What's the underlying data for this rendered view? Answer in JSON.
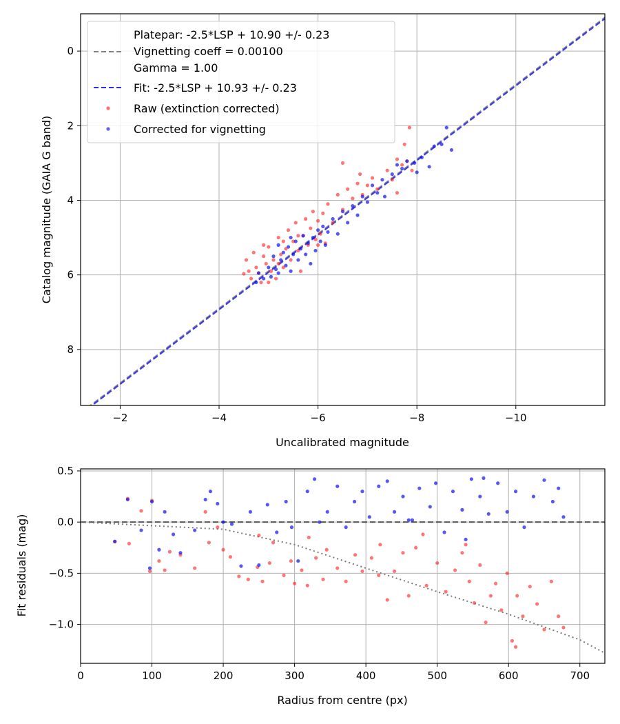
{
  "chart_data": [
    {
      "type": "scatter",
      "name": "calibration-plot",
      "xlabel": "Uncalibrated magnitude",
      "ylabel": "Catalog magnitude (GAIA G band)",
      "xlim": [
        -1.2,
        -11.8
      ],
      "ylim": [
        -1.0,
        9.5
      ],
      "x_inverted": true,
      "y_inverted": true,
      "grid": true,
      "legend_position": "upper-left",
      "x_ticks": [
        -2,
        -4,
        -6,
        -8,
        -10
      ],
      "x_tick_labels": [
        "−2",
        "−4",
        "−6",
        "−8",
        "−10"
      ],
      "y_ticks": [
        0,
        2,
        4,
        6,
        8
      ],
      "y_tick_labels": [
        "0",
        "2",
        "4",
        "6",
        "8"
      ],
      "legend": {
        "platepar_label_lines": [
          "Platepar: -2.5*LSP + 10.90 +/- 0.23",
          "Vignetting coeff = 0.00100",
          "Gamma = 1.00"
        ],
        "fit_label": "Fit: -2.5*LSP + 10.93 +/- 0.23",
        "raw_label": "Raw (extinction corrected)",
        "corrected_label": "Corrected for vignetting"
      },
      "lines": [
        {
          "label": "platepar",
          "slope": 1,
          "intercept": 10.9,
          "color": "#808080",
          "style": "dashed"
        },
        {
          "label": "fit",
          "slope": 1,
          "intercept": 10.93,
          "color": "#2b2be8",
          "style": "dashed"
        }
      ],
      "series": [
        {
          "name": "Raw (extinction corrected)",
          "color": "#ff2020",
          "points": [
            [
              -4.5,
              5.97
            ],
            [
              -4.55,
              5.6
            ],
            [
              -4.6,
              5.9
            ],
            [
              -4.65,
              6.1
            ],
            [
              -4.7,
              5.4
            ],
            [
              -4.75,
              5.8
            ],
            [
              -4.8,
              5.95
            ],
            [
              -4.85,
              6.2
            ],
            [
              -4.9,
              5.5
            ],
            [
              -4.95,
              5.7
            ],
            [
              -5.0,
              5.25
            ],
            [
              -5.05,
              5.9
            ],
            [
              -5.1,
              5.6
            ],
            [
              -5.15,
              6.1
            ],
            [
              -5.2,
              5.0
            ],
            [
              -5.25,
              5.45
            ],
            [
              -5.3,
              5.8
            ],
            [
              -5.35,
              5.3
            ],
            [
              -5.4,
              4.8
            ],
            [
              -5.45,
              5.6
            ],
            [
              -5.5,
              5.1
            ],
            [
              -5.55,
              4.6
            ],
            [
              -5.6,
              5.35
            ],
            [
              -5.65,
              5.9
            ],
            [
              -5.7,
              4.95
            ],
            [
              -5.75,
              4.5
            ],
            [
              -5.8,
              5.2
            ],
            [
              -5.85,
              4.75
            ],
            [
              -5.9,
              4.3
            ],
            [
              -5.95,
              5.05
            ],
            [
              -6.0,
              4.55
            ],
            [
              -6.05,
              4.9
            ],
            [
              -6.1,
              4.35
            ],
            [
              -6.15,
              5.15
            ],
            [
              -6.2,
              4.1
            ],
            [
              -6.3,
              4.6
            ],
            [
              -6.4,
              3.85
            ],
            [
              -6.5,
              4.25
            ],
            [
              -6.6,
              3.7
            ],
            [
              -6.7,
              3.95
            ],
            [
              -6.8,
              3.55
            ],
            [
              -6.85,
              3.3
            ],
            [
              -6.9,
              3.85
            ],
            [
              -7.0,
              3.6
            ],
            [
              -7.1,
              3.4
            ],
            [
              -7.2,
              3.7
            ],
            [
              -7.4,
              3.2
            ],
            [
              -7.5,
              3.45
            ],
            [
              -7.6,
              2.9
            ],
            [
              -7.7,
              3.05
            ],
            [
              -7.75,
              2.5
            ],
            [
              -7.8,
              2.95
            ],
            [
              -7.85,
              2.05
            ],
            [
              -7.9,
              3.2
            ],
            [
              -7.6,
              3.8
            ],
            [
              -6.5,
              3.0
            ],
            [
              -5.2,
              5.7
            ],
            [
              -4.9,
              5.2
            ],
            [
              -5.0,
              6.2
            ],
            [
              -5.6,
              4.95
            ],
            [
              -5.3,
              5.1
            ],
            [
              -6.0,
              5.2
            ]
          ]
        },
        {
          "name": "Corrected for vignetting",
          "color": "#1010f0",
          "points": [
            [
              -4.75,
              6.2
            ],
            [
              -4.8,
              5.95
            ],
            [
              -4.9,
              6.1
            ],
            [
              -5.0,
              5.8
            ],
            [
              -5.05,
              6.05
            ],
            [
              -5.1,
              5.5
            ],
            [
              -5.15,
              5.85
            ],
            [
              -5.2,
              5.95
            ],
            [
              -5.25,
              5.6
            ],
            [
              -5.3,
              5.4
            ],
            [
              -5.35,
              5.75
            ],
            [
              -5.4,
              5.25
            ],
            [
              -5.45,
              5.9
            ],
            [
              -5.5,
              5.45
            ],
            [
              -5.55,
              5.1
            ],
            [
              -5.6,
              5.6
            ],
            [
              -5.65,
              5.3
            ],
            [
              -5.7,
              4.95
            ],
            [
              -5.75,
              5.45
            ],
            [
              -5.8,
              5.15
            ],
            [
              -5.85,
              5.7
            ],
            [
              -5.9,
              5.0
            ],
            [
              -5.95,
              5.35
            ],
            [
              -6.0,
              4.8
            ],
            [
              -6.05,
              5.1
            ],
            [
              -6.1,
              4.7
            ],
            [
              -6.15,
              5.2
            ],
            [
              -6.2,
              4.85
            ],
            [
              -6.3,
              4.5
            ],
            [
              -6.4,
              4.9
            ],
            [
              -6.5,
              4.3
            ],
            [
              -6.6,
              4.6
            ],
            [
              -6.7,
              4.15
            ],
            [
              -6.8,
              4.4
            ],
            [
              -6.9,
              3.9
            ],
            [
              -7.0,
              4.05
            ],
            [
              -7.1,
              3.6
            ],
            [
              -7.2,
              3.8
            ],
            [
              -7.3,
              3.45
            ],
            [
              -7.5,
              3.3
            ],
            [
              -7.6,
              3.05
            ],
            [
              -7.7,
              3.15
            ],
            [
              -7.8,
              2.95
            ],
            [
              -7.95,
              3.0
            ],
            [
              -8.1,
              2.85
            ],
            [
              -8.25,
              3.1
            ],
            [
              -8.35,
              2.55
            ],
            [
              -8.5,
              2.5
            ],
            [
              -8.6,
              2.05
            ],
            [
              -8.7,
              2.65
            ],
            [
              -8.0,
              3.25
            ],
            [
              -7.35,
              3.9
            ],
            [
              -5.2,
              5.2
            ],
            [
              -5.45,
              5.0
            ]
          ]
        }
      ]
    },
    {
      "type": "scatter",
      "name": "residuals-plot",
      "xlabel": "Radius from centre (px)",
      "ylabel": "Fit residuals (mag)",
      "xlim": [
        0,
        735
      ],
      "ylim": [
        -1.38,
        0.52
      ],
      "grid": true,
      "x_ticks": [
        0,
        100,
        200,
        300,
        400,
        500,
        600,
        700
      ],
      "x_tick_labels": [
        "0",
        "100",
        "200",
        "300",
        "400",
        "500",
        "600",
        "700"
      ],
      "y_ticks": [
        0.5,
        0.0,
        -0.5,
        -1.0
      ],
      "y_tick_labels": [
        "0.5",
        "0.0",
        "−0.5",
        "−1.0"
      ],
      "zero_line": {
        "y": 0,
        "color": "#555555",
        "style": "dashed"
      },
      "vignetting_curve": {
        "color": "#777777",
        "style": "dotted",
        "points": [
          [
            0,
            0.0
          ],
          [
            200,
            -0.07
          ],
          [
            300,
            -0.22
          ],
          [
            400,
            -0.45
          ],
          [
            500,
            -0.68
          ],
          [
            600,
            -0.9
          ],
          [
            700,
            -1.15
          ],
          [
            735,
            -1.28
          ]
        ]
      },
      "series": [
        {
          "name": "Raw (extinction corrected)",
          "color": "#ff2020",
          "points": [
            [
              48,
              -0.19
            ],
            [
              66,
              0.23
            ],
            [
              68,
              -0.21
            ],
            [
              85,
              0.11
            ],
            [
              97,
              -0.48
            ],
            [
              100,
              0.21
            ],
            [
              110,
              -0.38
            ],
            [
              118,
              -0.47
            ],
            [
              125,
              -0.29
            ],
            [
              140,
              -0.32
            ],
            [
              160,
              -0.45
            ],
            [
              175,
              0.1
            ],
            [
              180,
              -0.2
            ],
            [
              192,
              -0.05
            ],
            [
              200,
              -0.27
            ],
            [
              210,
              -0.34
            ],
            [
              222,
              -0.53
            ],
            [
              235,
              -0.56
            ],
            [
              248,
              -0.44
            ],
            [
              255,
              -0.58
            ],
            [
              265,
              -0.4
            ],
            [
              270,
              -0.2
            ],
            [
              285,
              -0.52
            ],
            [
              295,
              -0.38
            ],
            [
              300,
              -0.6
            ],
            [
              310,
              -0.47
            ],
            [
              318,
              -0.62
            ],
            [
              330,
              -0.35
            ],
            [
              340,
              -0.56
            ],
            [
              345,
              -0.27
            ],
            [
              360,
              -0.45
            ],
            [
              372,
              -0.58
            ],
            [
              385,
              -0.32
            ],
            [
              395,
              -0.48
            ],
            [
              408,
              -0.35
            ],
            [
              418,
              -0.52
            ],
            [
              430,
              -0.76
            ],
            [
              440,
              -0.48
            ],
            [
              452,
              -0.3
            ],
            [
              460,
              -0.72
            ],
            [
              470,
              -0.25
            ],
            [
              485,
              -0.62
            ],
            [
              500,
              -0.4
            ],
            [
              512,
              -0.68
            ],
            [
              525,
              -0.47
            ],
            [
              535,
              -0.3
            ],
            [
              545,
              -0.58
            ],
            [
              552,
              -0.79
            ],
            [
              560,
              -0.42
            ],
            [
              568,
              -0.98
            ],
            [
              575,
              -0.72
            ],
            [
              582,
              -0.6
            ],
            [
              590,
              -0.86
            ],
            [
              598,
              -0.5
            ],
            [
              605,
              -1.16
            ],
            [
              612,
              -0.72
            ],
            [
              620,
              -0.92
            ],
            [
              630,
              -0.63
            ],
            [
              640,
              -0.8
            ],
            [
              650,
              -1.05
            ],
            [
              660,
              -0.58
            ],
            [
              670,
              -0.92
            ],
            [
              677,
              -1.03
            ],
            [
              250,
              -0.13
            ],
            [
              320,
              -0.15
            ],
            [
              420,
              -0.22
            ],
            [
              480,
              -0.12
            ],
            [
              540,
              -0.22
            ],
            [
              610,
              -1.22
            ]
          ]
        },
        {
          "name": "Corrected for vignetting",
          "color": "#1010f0",
          "points": [
            [
              48,
              -0.19
            ],
            [
              66,
              0.22
            ],
            [
              85,
              -0.08
            ],
            [
              97,
              -0.45
            ],
            [
              100,
              0.2
            ],
            [
              110,
              -0.27
            ],
            [
              118,
              0.1
            ],
            [
              130,
              -0.12
            ],
            [
              140,
              -0.3
            ],
            [
              160,
              -0.08
            ],
            [
              175,
              0.22
            ],
            [
              182,
              0.3
            ],
            [
              192,
              0.18
            ],
            [
              200,
              0.0
            ],
            [
              212,
              -0.02
            ],
            [
              225,
              -0.43
            ],
            [
              238,
              0.1
            ],
            [
              250,
              -0.42
            ],
            [
              262,
              0.17
            ],
            [
              275,
              -0.1
            ],
            [
              288,
              0.2
            ],
            [
              296,
              -0.05
            ],
            [
              305,
              -0.38
            ],
            [
              318,
              0.3
            ],
            [
              328,
              0.42
            ],
            [
              335,
              0.0
            ],
            [
              346,
              0.1
            ],
            [
              360,
              0.35
            ],
            [
              372,
              -0.05
            ],
            [
              384,
              0.2
            ],
            [
              395,
              0.3
            ],
            [
              405,
              0.05
            ],
            [
              418,
              0.35
            ],
            [
              430,
              0.4
            ],
            [
              440,
              0.1
            ],
            [
              452,
              0.25
            ],
            [
              465,
              0.02
            ],
            [
              475,
              0.33
            ],
            [
              490,
              0.15
            ],
            [
              498,
              0.38
            ],
            [
              510,
              -0.1
            ],
            [
              522,
              0.3
            ],
            [
              535,
              0.12
            ],
            [
              548,
              0.42
            ],
            [
              560,
              0.25
            ],
            [
              565,
              0.43
            ],
            [
              572,
              0.08
            ],
            [
              585,
              0.38
            ],
            [
              598,
              0.1
            ],
            [
              610,
              0.3
            ],
            [
              622,
              -0.05
            ],
            [
              635,
              0.25
            ],
            [
              650,
              0.41
            ],
            [
              662,
              0.2
            ],
            [
              670,
              0.33
            ],
            [
              677,
              0.05
            ],
            [
              540,
              -0.17
            ],
            [
              460,
              0.02
            ]
          ]
        }
      ]
    }
  ]
}
